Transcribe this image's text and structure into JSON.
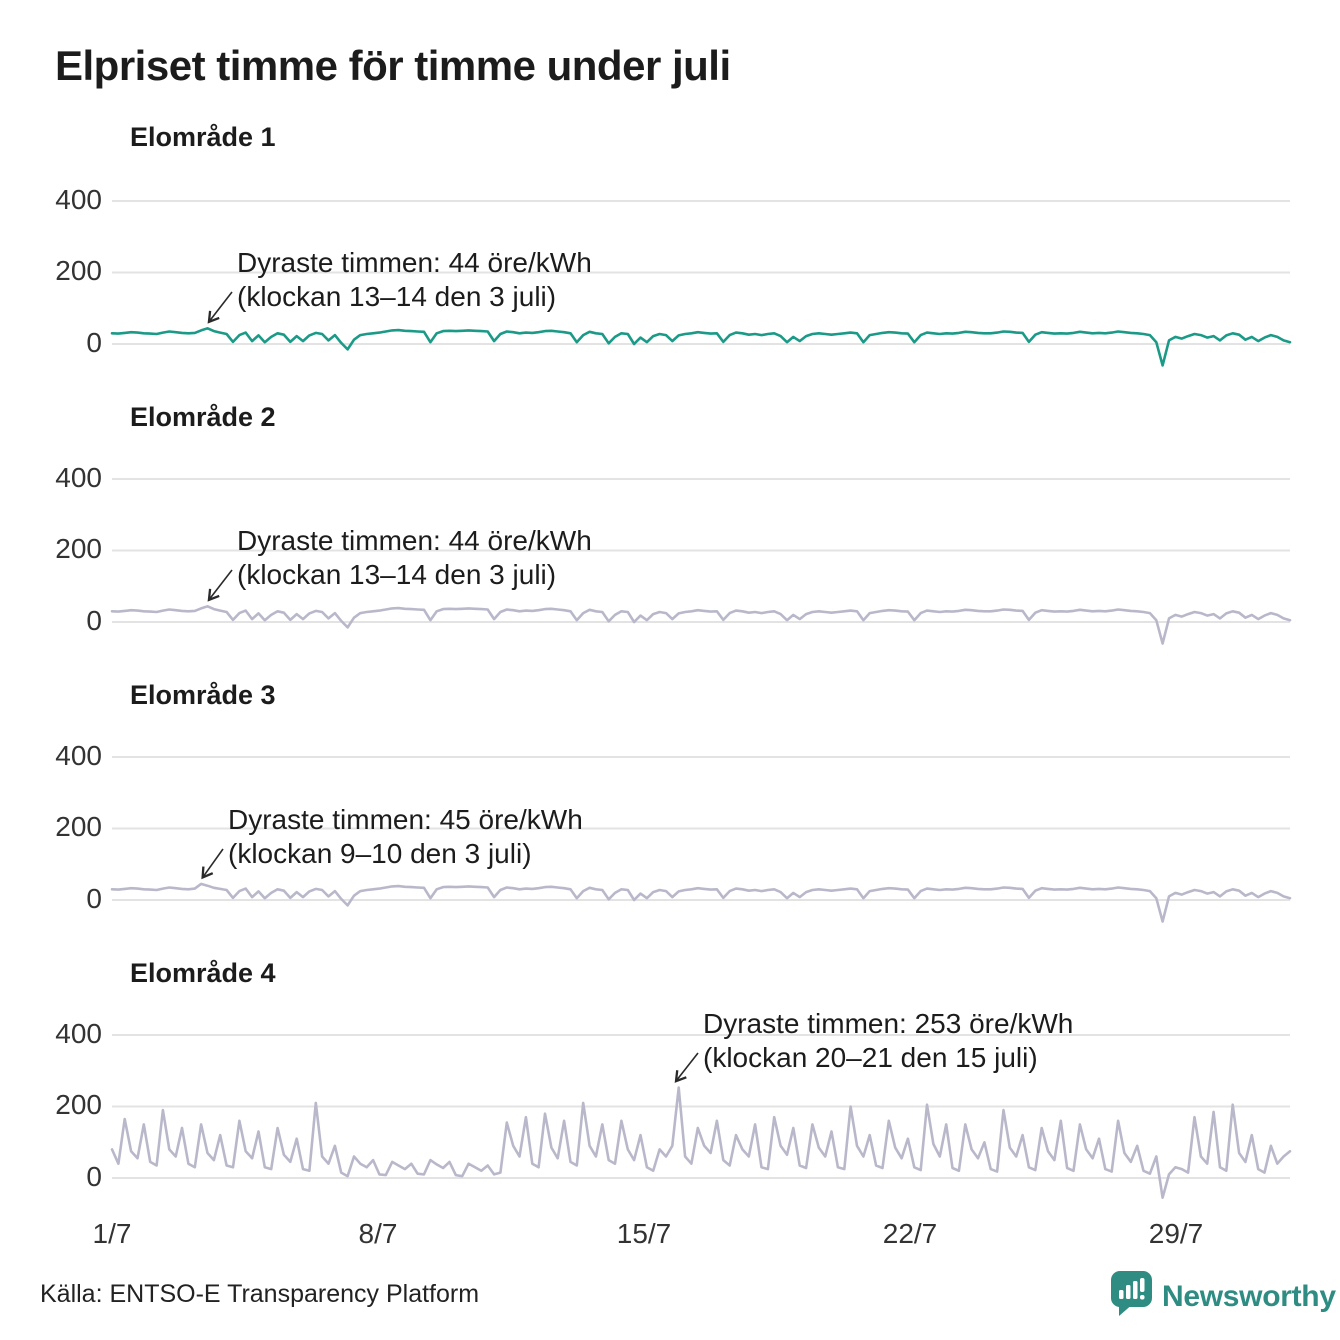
{
  "title": "Elpriset timme för timme under juli",
  "source": "Källa: ENTSO-E Transparency Platform",
  "brand": "Newsworthy",
  "colors": {
    "accent_teal": "#1b9a87",
    "muted_lavender": "#b9b8ca",
    "brand_teal": "#2e8c82",
    "grid": "#e3e3e3",
    "arrow": "#2a2a2a",
    "text": "#1d1d1d"
  },
  "chart_data": {
    "type": "line",
    "title": "Elpriset timme för timme under juli",
    "layout": "four stacked small-multiple panels sharing one x-axis",
    "x_tick_labels": [
      "1/7",
      "8/7",
      "15/7",
      "22/7",
      "29/7"
    ],
    "y_tick_labels": [
      "400",
      "200",
      "0"
    ],
    "y_unit": "öre/kWh",
    "x_domain_hours": 744,
    "sample_interval_hours": 4,
    "ylim": [
      -80,
      470
    ],
    "grid": true,
    "panels": [
      {
        "title": "Elområde 1",
        "color": "#1b9a87",
        "annotation": {
          "line1": "Dyraste timmen: 44 öre/kWh",
          "line2": "(klockan 13–14 den 3 juli)",
          "value": 44,
          "day": 3,
          "hour": 13.5
        },
        "values": [
          30,
          29,
          31,
          33,
          32,
          30,
          29,
          28,
          32,
          35,
          33,
          31,
          30,
          31,
          38,
          44,
          36,
          32,
          28,
          6,
          25,
          32,
          8,
          24,
          5,
          20,
          30,
          26,
          6,
          22,
          8,
          24,
          31,
          28,
          10,
          25,
          3,
          -15,
          12,
          25,
          28,
          30,
          32,
          35,
          38,
          39,
          37,
          36,
          35,
          34,
          5,
          30,
          36,
          37,
          36,
          37,
          38,
          37,
          36,
          35,
          8,
          28,
          35,
          33,
          30,
          32,
          31,
          33,
          36,
          37,
          35,
          33,
          30,
          5,
          25,
          34,
          30,
          28,
          2,
          20,
          30,
          28,
          0,
          18,
          5,
          22,
          28,
          25,
          8,
          24,
          28,
          30,
          33,
          31,
          29,
          30,
          6,
          25,
          32,
          30,
          26,
          28,
          25,
          28,
          30,
          22,
          5,
          20,
          8,
          22,
          28,
          30,
          28,
          26,
          28,
          30,
          32,
          30,
          5,
          25,
          28,
          31,
          33,
          32,
          30,
          29,
          5,
          25,
          32,
          30,
          28,
          30,
          29,
          31,
          34,
          33,
          31,
          30,
          30,
          32,
          35,
          34,
          32,
          31,
          6,
          26,
          33,
          31,
          29,
          30,
          29,
          31,
          34,
          32,
          30,
          31,
          30,
          32,
          35,
          33,
          31,
          30,
          28,
          25,
          5,
          -60,
          10,
          20,
          15,
          22,
          28,
          25,
          18,
          22,
          10,
          24,
          30,
          26,
          12,
          20,
          8,
          18,
          25,
          20,
          10,
          5
        ]
      },
      {
        "title": "Elområde 2",
        "color": "#b9b8ca",
        "annotation": {
          "line1": "Dyraste timmen: 44 öre/kWh",
          "line2": "(klockan 13–14 den 3 juli)",
          "value": 44,
          "day": 3,
          "hour": 13.5
        },
        "values": [
          30,
          29,
          31,
          33,
          32,
          30,
          29,
          28,
          32,
          35,
          33,
          31,
          30,
          31,
          38,
          44,
          36,
          32,
          28,
          6,
          25,
          32,
          8,
          24,
          5,
          20,
          30,
          26,
          6,
          22,
          8,
          24,
          31,
          28,
          10,
          25,
          3,
          -15,
          12,
          25,
          28,
          30,
          32,
          35,
          38,
          39,
          37,
          36,
          35,
          34,
          5,
          30,
          36,
          37,
          36,
          37,
          38,
          37,
          36,
          35,
          8,
          28,
          35,
          33,
          30,
          32,
          31,
          33,
          36,
          37,
          35,
          33,
          30,
          5,
          25,
          34,
          30,
          28,
          2,
          20,
          30,
          28,
          0,
          18,
          5,
          22,
          28,
          25,
          8,
          24,
          28,
          30,
          33,
          31,
          29,
          30,
          6,
          25,
          32,
          30,
          26,
          28,
          25,
          28,
          30,
          22,
          5,
          20,
          8,
          22,
          28,
          30,
          28,
          26,
          28,
          30,
          32,
          30,
          5,
          25,
          28,
          31,
          33,
          32,
          30,
          29,
          5,
          25,
          32,
          30,
          28,
          30,
          29,
          31,
          34,
          33,
          31,
          30,
          30,
          32,
          35,
          34,
          32,
          31,
          6,
          26,
          33,
          31,
          29,
          30,
          29,
          31,
          34,
          32,
          30,
          31,
          30,
          32,
          35,
          33,
          31,
          30,
          28,
          25,
          5,
          -60,
          10,
          20,
          15,
          22,
          28,
          25,
          18,
          22,
          10,
          24,
          30,
          26,
          12,
          20,
          8,
          18,
          25,
          20,
          10,
          5
        ]
      },
      {
        "title": "Elområde 3",
        "color": "#b9b8ca",
        "annotation": {
          "line1": "Dyraste timmen: 45 öre/kWh",
          "line2": "(klockan 9–10 den 3 juli)",
          "value": 45,
          "day": 3,
          "hour": 9.5
        },
        "values": [
          30,
          29,
          31,
          33,
          32,
          30,
          29,
          28,
          32,
          35,
          33,
          31,
          30,
          32,
          45,
          40,
          34,
          31,
          28,
          6,
          25,
          32,
          8,
          24,
          5,
          20,
          30,
          26,
          6,
          22,
          8,
          24,
          31,
          28,
          10,
          25,
          3,
          -15,
          12,
          25,
          28,
          30,
          32,
          35,
          38,
          39,
          37,
          36,
          35,
          34,
          5,
          30,
          36,
          37,
          36,
          37,
          38,
          37,
          36,
          35,
          8,
          28,
          35,
          33,
          30,
          32,
          31,
          33,
          36,
          37,
          35,
          33,
          30,
          5,
          25,
          34,
          30,
          28,
          2,
          20,
          30,
          28,
          0,
          18,
          5,
          22,
          28,
          25,
          8,
          24,
          28,
          30,
          33,
          31,
          29,
          30,
          6,
          25,
          32,
          30,
          26,
          28,
          25,
          28,
          30,
          22,
          5,
          20,
          8,
          22,
          28,
          30,
          28,
          26,
          28,
          30,
          32,
          30,
          5,
          25,
          28,
          31,
          33,
          32,
          30,
          29,
          5,
          25,
          32,
          30,
          28,
          30,
          29,
          31,
          34,
          33,
          31,
          30,
          30,
          32,
          35,
          34,
          32,
          31,
          6,
          26,
          33,
          31,
          29,
          30,
          29,
          31,
          34,
          32,
          30,
          31,
          30,
          32,
          35,
          33,
          31,
          30,
          28,
          25,
          5,
          -60,
          10,
          20,
          15,
          22,
          28,
          25,
          18,
          22,
          10,
          24,
          30,
          26,
          12,
          20,
          8,
          18,
          25,
          20,
          10,
          5
        ]
      },
      {
        "title": "Elområde 4",
        "color": "#b9b8ca",
        "annotation": {
          "line1": "Dyraste timmen: 253 öre/kWh",
          "line2": "(klockan 20–21 den 15 juli)",
          "value": 253,
          "day": 15,
          "hour": 20.5
        },
        "values": [
          80,
          40,
          165,
          75,
          55,
          150,
          45,
          35,
          190,
          80,
          60,
          140,
          40,
          30,
          150,
          70,
          50,
          120,
          35,
          30,
          160,
          75,
          55,
          130,
          30,
          25,
          140,
          65,
          45,
          110,
          25,
          20,
          210,
          60,
          40,
          90,
          15,
          5,
          60,
          40,
          30,
          50,
          10,
          8,
          45,
          35,
          25,
          40,
          12,
          10,
          50,
          38,
          28,
          45,
          8,
          5,
          40,
          30,
          20,
          35,
          10,
          15,
          155,
          90,
          60,
          170,
          40,
          30,
          180,
          85,
          55,
          160,
          45,
          35,
          210,
          90,
          60,
          150,
          50,
          40,
          160,
          80,
          50,
          120,
          30,
          20,
          80,
          60,
          90,
          253,
          60,
          40,
          140,
          90,
          70,
          160,
          50,
          35,
          120,
          80,
          60,
          150,
          30,
          25,
          170,
          90,
          65,
          140,
          35,
          28,
          150,
          85,
          60,
          130,
          30,
          25,
          200,
          90,
          60,
          120,
          35,
          28,
          160,
          85,
          55,
          110,
          30,
          22,
          205,
          95,
          60,
          150,
          28,
          20,
          150,
          80,
          55,
          100,
          25,
          18,
          190,
          85,
          60,
          120,
          30,
          22,
          140,
          75,
          50,
          160,
          28,
          20,
          150,
          80,
          55,
          110,
          25,
          18,
          160,
          70,
          45,
          90,
          20,
          12,
          60,
          -55,
          10,
          30,
          25,
          15,
          170,
          60,
          40,
          185,
          30,
          20,
          205,
          70,
          45,
          120,
          25,
          15,
          90,
          40,
          60,
          75
        ]
      }
    ]
  }
}
